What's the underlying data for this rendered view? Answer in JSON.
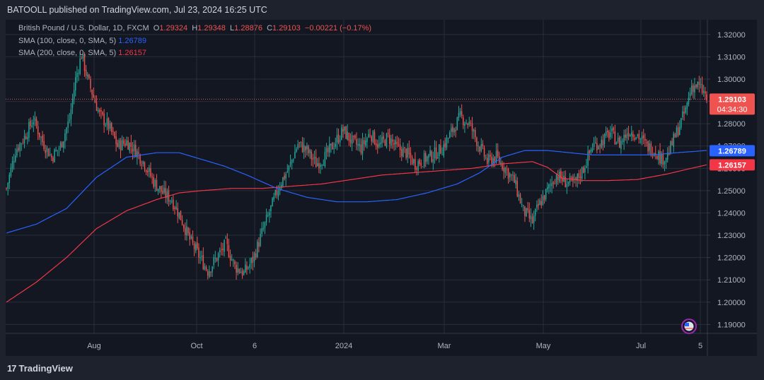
{
  "header": {
    "published": "BATOOLL published on TradingView.com, Jul 23, 2024 16:25 UTC"
  },
  "legend": {
    "symbol": "British Pound / U.S. Dollar, 1D, FXCM",
    "open_label": "O",
    "open": "1.29324",
    "high_label": "H",
    "high": "1.29348",
    "low_label": "L",
    "low": "1.28876",
    "close_label": "C",
    "close": "1.29103",
    "change": "−0.00221 (−0.17%)",
    "sma100_label": "SMA (100, close, 0, SMA, 5)",
    "sma100_value": "1.26789",
    "sma200_label": "SMA (200, close, 0, SMA, 5)",
    "sma200_value": "1.26157"
  },
  "price_tags": {
    "last": "1.29103",
    "countdown": "04:34:30",
    "sma100": "1.26789",
    "sma200": "1.26157"
  },
  "footer": {
    "brand": "TradingView",
    "logo": "17"
  },
  "colors": {
    "up": "#26a69a",
    "down": "#ef5350",
    "sma100": "#2962ff",
    "sma200": "#f23645",
    "bg": "#131722"
  },
  "chart_data": {
    "type": "candlestick",
    "symbol": "GBPUSD",
    "timeframe": "1D",
    "y_ticks": [
      "1.32000",
      "1.31000",
      "1.30000",
      "1.29000",
      "1.28000",
      "1.27000",
      "1.26000",
      "1.25000",
      "1.24000",
      "1.23000",
      "1.22000",
      "1.21000",
      "1.20000",
      "1.19000"
    ],
    "x_ticks": [
      "Aug",
      "Oct",
      "6",
      "2024",
      "Mar",
      "May",
      "Jul",
      "5"
    ],
    "ylim": [
      1.186,
      1.3266
    ],
    "close_path": [
      [
        0,
        1.251
      ],
      [
        6,
        1.268
      ],
      [
        12,
        1.274
      ],
      [
        18,
        1.282
      ],
      [
        24,
        1.272
      ],
      [
        30,
        1.265
      ],
      [
        36,
        1.27
      ],
      [
        42,
        1.282
      ],
      [
        46,
        1.3
      ],
      [
        50,
        1.311
      ],
      [
        54,
        1.3
      ],
      [
        58,
        1.292
      ],
      [
        62,
        1.284
      ],
      [
        68,
        1.279
      ],
      [
        74,
        1.27
      ],
      [
        80,
        1.272
      ],
      [
        86,
        1.268
      ],
      [
        92,
        1.262
      ],
      [
        98,
        1.254
      ],
      [
        104,
        1.249
      ],
      [
        110,
        1.246
      ],
      [
        116,
        1.238
      ],
      [
        122,
        1.228
      ],
      [
        128,
        1.221
      ],
      [
        134,
        1.214
      ],
      [
        140,
        1.22
      ],
      [
        146,
        1.226
      ],
      [
        152,
        1.216
      ],
      [
        158,
        1.213
      ],
      [
        164,
        1.219
      ],
      [
        170,
        1.231
      ],
      [
        176,
        1.242
      ],
      [
        182,
        1.253
      ],
      [
        188,
        1.26
      ],
      [
        194,
        1.271
      ],
      [
        200,
        1.268
      ],
      [
        206,
        1.262
      ],
      [
        212,
        1.265
      ],
      [
        218,
        1.271
      ],
      [
        224,
        1.277
      ],
      [
        230,
        1.272
      ],
      [
        236,
        1.269
      ],
      [
        242,
        1.276
      ],
      [
        248,
        1.27
      ],
      [
        254,
        1.274
      ],
      [
        260,
        1.269
      ],
      [
        266,
        1.267
      ],
      [
        272,
        1.262
      ],
      [
        278,
        1.264
      ],
      [
        284,
        1.266
      ],
      [
        290,
        1.269
      ],
      [
        296,
        1.276
      ],
      [
        302,
        1.283
      ],
      [
        308,
        1.28
      ],
      [
        314,
        1.271
      ],
      [
        320,
        1.263
      ],
      [
        326,
        1.265
      ],
      [
        332,
        1.26
      ],
      [
        338,
        1.254
      ],
      [
        344,
        1.241
      ],
      [
        350,
        1.236
      ],
      [
        354,
        1.243
      ],
      [
        360,
        1.25
      ],
      [
        366,
        1.257
      ],
      [
        372,
        1.254
      ],
      [
        378,
        1.253
      ],
      [
        384,
        1.26
      ],
      [
        390,
        1.27
      ],
      [
        396,
        1.272
      ],
      [
        402,
        1.276
      ],
      [
        408,
        1.271
      ],
      [
        414,
        1.277
      ],
      [
        420,
        1.275
      ],
      [
        426,
        1.27
      ],
      [
        432,
        1.268
      ],
      [
        436,
        1.264
      ],
      [
        440,
        1.266
      ],
      [
        446,
        1.276
      ],
      [
        452,
        1.286
      ],
      [
        456,
        1.297
      ],
      [
        460,
        1.297
      ],
      [
        464,
        1.294
      ],
      [
        466,
        1.291
      ]
    ],
    "sma100_path": [
      [
        0,
        1.231
      ],
      [
        20,
        1.235
      ],
      [
        40,
        1.242
      ],
      [
        60,
        1.256
      ],
      [
        80,
        1.265
      ],
      [
        100,
        1.267
      ],
      [
        115,
        1.267
      ],
      [
        130,
        1.264
      ],
      [
        145,
        1.261
      ],
      [
        160,
        1.257
      ],
      [
        180,
        1.251
      ],
      [
        200,
        1.247
      ],
      [
        220,
        1.245
      ],
      [
        240,
        1.245
      ],
      [
        260,
        1.246
      ],
      [
        280,
        1.249
      ],
      [
        300,
        1.253
      ],
      [
        315,
        1.258
      ],
      [
        330,
        1.265
      ],
      [
        345,
        1.268
      ],
      [
        360,
        1.268
      ],
      [
        375,
        1.267
      ],
      [
        390,
        1.266
      ],
      [
        410,
        1.266
      ],
      [
        430,
        1.266
      ],
      [
        446,
        1.267
      ],
      [
        466,
        1.268
      ]
    ],
    "sma200_path": [
      [
        0,
        1.2
      ],
      [
        20,
        1.209
      ],
      [
        40,
        1.22
      ],
      [
        60,
        1.233
      ],
      [
        80,
        1.241
      ],
      [
        100,
        1.246
      ],
      [
        115,
        1.249
      ],
      [
        130,
        1.25
      ],
      [
        150,
        1.251
      ],
      [
        170,
        1.251
      ],
      [
        190,
        1.252
      ],
      [
        210,
        1.253
      ],
      [
        230,
        1.255
      ],
      [
        250,
        1.257
      ],
      [
        270,
        1.258
      ],
      [
        290,
        1.259
      ],
      [
        310,
        1.26
      ],
      [
        330,
        1.262
      ],
      [
        350,
        1.263
      ],
      [
        360,
        1.2605
      ],
      [
        370,
        1.2555
      ],
      [
        385,
        1.2545
      ],
      [
        400,
        1.2545
      ],
      [
        420,
        1.255
      ],
      [
        440,
        1.2575
      ],
      [
        466,
        1.2616
      ]
    ],
    "last_price": 1.29103,
    "sma100_last": 1.26789,
    "sma200_last": 1.26157
  }
}
